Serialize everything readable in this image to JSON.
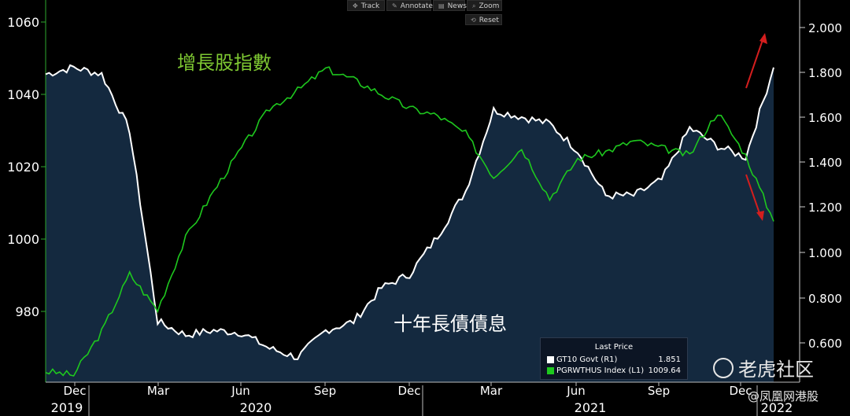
{
  "toolbar": {
    "track_label": "Track",
    "annotate_label": "Annotate",
    "news_label": "News",
    "zoom_label": "Zoom",
    "reset_label": "Reset"
  },
  "annotations": {
    "growth_label": "增長股指數",
    "yield_label": "十年長債債息"
  },
  "legend": {
    "title": "Last Price",
    "rows": [
      {
        "name": "GT10 Govt  (R1)",
        "value": "1.851",
        "color": "#ffffff"
      },
      {
        "name": "PGRWTHUS Index  (L1)",
        "value": "1009.64",
        "color": "#1ec81e"
      }
    ]
  },
  "watermarks": {
    "tiger": "老虎社区",
    "fenghuang": "@凤凰网港股"
  },
  "colors": {
    "background": "#000000",
    "area_fill": "#14293f",
    "yield_line": "#ffffff",
    "growth_line": "#1ec81e",
    "growth_text": "#7ec832",
    "arrow": "#d41e1e"
  },
  "chart_data": {
    "type": "line",
    "left_axis": {
      "ticks": [
        "1060",
        "1040",
        "1020",
        "1000",
        "980"
      ],
      "range": [
        965,
        1065
      ]
    },
    "right_axis": {
      "ticks": [
        "2.000",
        "1.800",
        "1.600",
        "1.400",
        "1.200",
        "1.000",
        "0.800",
        "0.600"
      ],
      "range": [
        0.45,
        2.15
      ]
    },
    "x_month_labels": [
      "Dec",
      "Mar",
      "Jun",
      "Sep",
      "Dec",
      "Mar",
      "Jun",
      "Sep",
      "Dec"
    ],
    "x_year_labels": [
      "2019",
      "2020",
      "2021",
      "2022"
    ],
    "x": [
      "2019-11",
      "2019-12",
      "2020-01",
      "2020-02",
      "2020-03",
      "2020-04",
      "2020-05",
      "2020-06",
      "2020-07",
      "2020-08",
      "2020-09",
      "2020-10",
      "2020-11",
      "2020-12",
      "2021-01",
      "2021-02",
      "2021-03",
      "2021-04",
      "2021-05",
      "2021-06",
      "2021-07",
      "2021-08",
      "2021-09",
      "2021-10",
      "2021-11",
      "2021-12",
      "2022-01"
    ],
    "series": [
      {
        "name": "GT10 Govt",
        "axis": "right",
        "style": "area",
        "values": [
          1.82,
          1.85,
          1.82,
          1.57,
          0.72,
          0.66,
          0.68,
          0.67,
          0.6,
          0.56,
          0.68,
          0.72,
          0.87,
          0.93,
          1.1,
          1.3,
          1.66,
          1.63,
          1.6,
          1.48,
          1.28,
          1.28,
          1.35,
          1.58,
          1.5,
          1.45,
          1.85
        ]
      },
      {
        "name": "PGRWTHUS Index",
        "axis": "left",
        "style": "line",
        "values": [
          968,
          967,
          979,
          995,
          985,
          1005,
          1018,
          1030,
          1041,
          1046,
          1052,
          1049,
          1045,
          1041,
          1039,
          1034,
          1022,
          1030,
          1016,
          1027,
          1029,
          1032,
          1030,
          1028,
          1040,
          1028,
          1009.64
        ]
      }
    ]
  }
}
